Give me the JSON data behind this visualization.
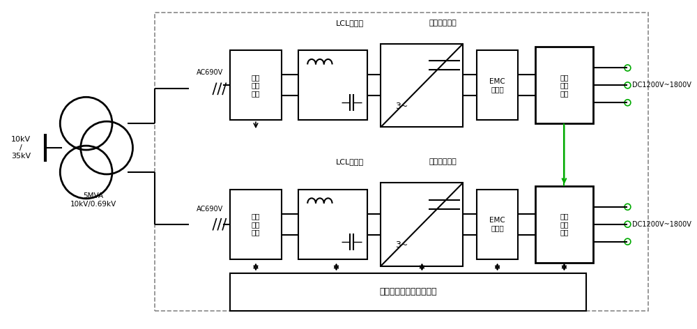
{
  "bg_color": "#ffffff",
  "line_color": "#000000",
  "dashed_box_color": "#888888",
  "green_color": "#00aa00",
  "fig_width": 10.0,
  "fig_height": 4.72,
  "dpi": 100,
  "transformer_label": "5MVA\n10kV/0.69kV",
  "voltage_label": "10kV\n/\n35kV",
  "ac_label": "AC690V",
  "dc_label": "DC1200V~1800V",
  "lcl_label": "LCL滤波器",
  "three_level_label": "三电平变流器",
  "ac_unit_label": "交流\n配电\n单元",
  "emc_label": "EMC\n滤波器",
  "dc_unit_label": "直流\n配电\n单元",
  "vsm_label": "虚拟同步机集中控制单元"
}
